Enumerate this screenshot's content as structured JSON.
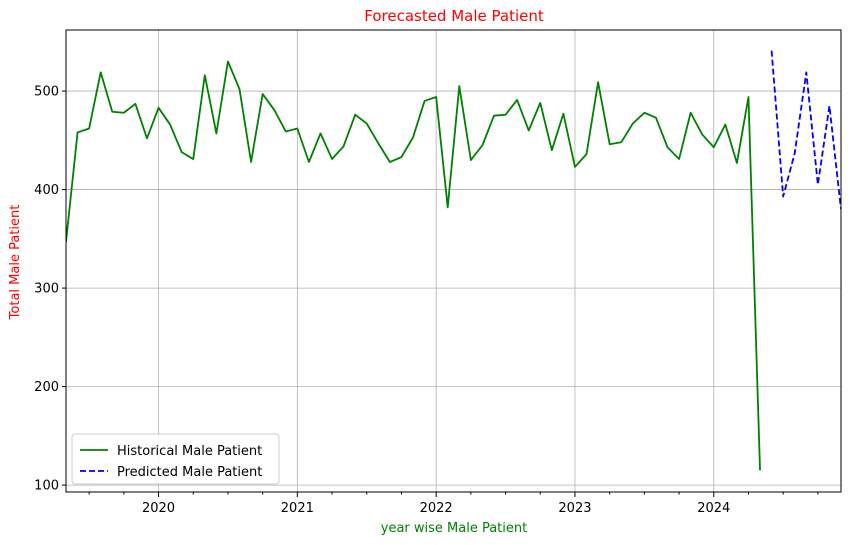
{
  "chart_data": {
    "type": "line",
    "title": "Forecasted Male Patient",
    "xlabel": "year wise Male Patient",
    "ylabel": "Total Male Patient",
    "colors": {
      "title": "#ff0000",
      "ylabel": "#ff0000",
      "xlabel": "#008000"
    },
    "xlim": [
      "2019-05",
      "2024-12"
    ],
    "ylim": [
      93,
      562
    ],
    "x_ticks": [
      "2020",
      "2021",
      "2022",
      "2023",
      "2024"
    ],
    "y_ticks": [
      100,
      200,
      300,
      400,
      500
    ],
    "grid": true,
    "legend_position": "lower-left",
    "series": [
      {
        "name": "Historical Male Patient",
        "color": "#008000",
        "style": "solid",
        "x": [
          "2019-05",
          "2019-06",
          "2019-07",
          "2019-08",
          "2019-09",
          "2019-10",
          "2019-11",
          "2019-12",
          "2020-01",
          "2020-02",
          "2020-03",
          "2020-04",
          "2020-05",
          "2020-06",
          "2020-07",
          "2020-08",
          "2020-09",
          "2020-10",
          "2020-11",
          "2020-12",
          "2021-01",
          "2021-02",
          "2021-03",
          "2021-04",
          "2021-05",
          "2021-06",
          "2021-07",
          "2021-08",
          "2021-09",
          "2021-10",
          "2021-11",
          "2021-12",
          "2022-01",
          "2022-02",
          "2022-03",
          "2022-04",
          "2022-05",
          "2022-06",
          "2022-07",
          "2022-08",
          "2022-09",
          "2022-10",
          "2022-11",
          "2022-12",
          "2023-01",
          "2023-02",
          "2023-03",
          "2023-04",
          "2023-05",
          "2023-06",
          "2023-07",
          "2023-08",
          "2023-09",
          "2023-10",
          "2023-11",
          "2023-12",
          "2024-01",
          "2024-02",
          "2024-03",
          "2024-04",
          "2024-05"
        ],
        "y": [
          347,
          458,
          462,
          519,
          479,
          478,
          487,
          452,
          483,
          466,
          438,
          431,
          516,
          457,
          530,
          502,
          428,
          497,
          481,
          459,
          462,
          428,
          457,
          431,
          444,
          476,
          467,
          447,
          428,
          433,
          453,
          490,
          494,
          382,
          505,
          430,
          445,
          475,
          476,
          491,
          460,
          488,
          440,
          477,
          423,
          436,
          509,
          446,
          448,
          467,
          478,
          473,
          443,
          431,
          478,
          456,
          443,
          466,
          427,
          494,
          115
        ]
      },
      {
        "name": "Predicted Male Patient",
        "color": "#0000ff",
        "style": "dashed",
        "x": [
          "2024-06",
          "2024-07",
          "2024-08",
          "2024-09",
          "2024-10",
          "2024-11",
          "2024-12"
        ],
        "y": [
          541,
          393,
          437,
          519,
          405,
          485,
          380
        ]
      }
    ]
  }
}
